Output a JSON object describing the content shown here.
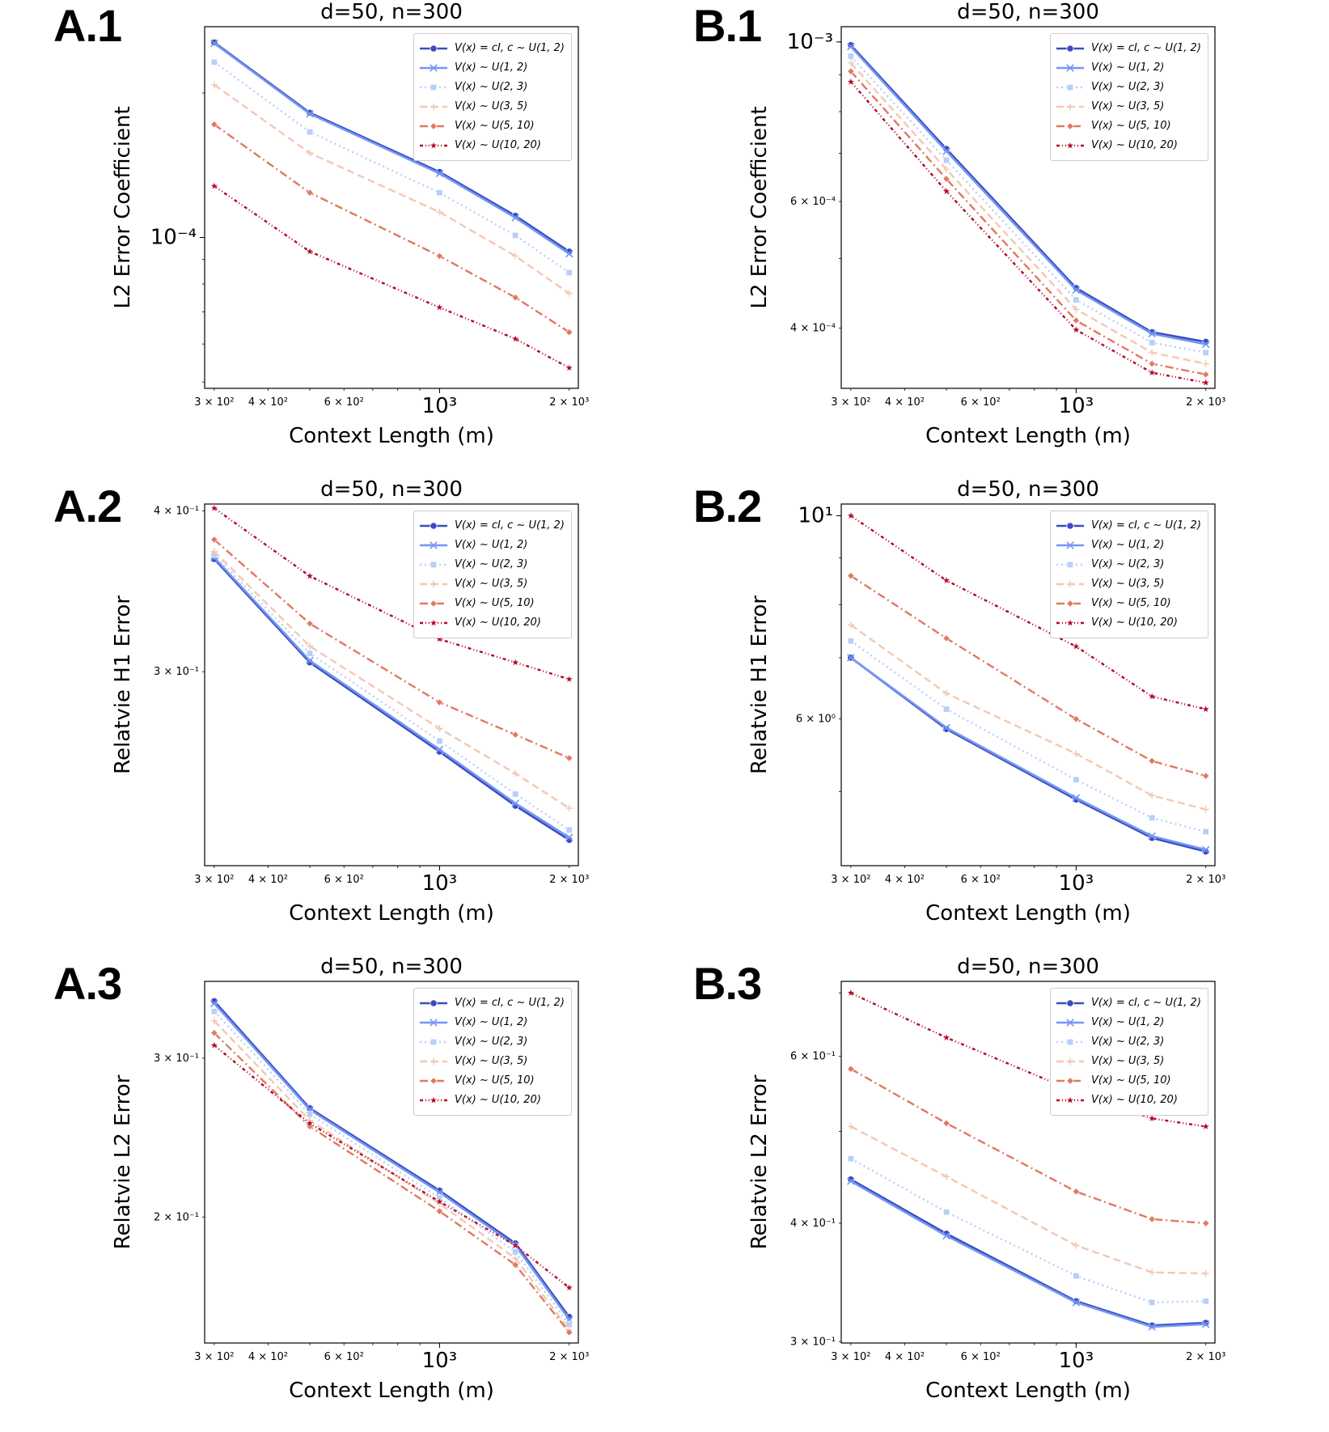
{
  "figure": {
    "panel_labels": [
      "A.1",
      "B.1",
      "A.2",
      "B.2",
      "A.3",
      "B.3"
    ]
  },
  "legend_entries": [
    "V(x) = cI,  c ~ U(1, 2)",
    "V(x) ~ U(1, 2)",
    "V(x) ~ U(2, 3)",
    "V(x) ~ U(3, 5)",
    "V(x) ~ U(5, 10)",
    "V(x) ~ U(10, 20)"
  ],
  "series_styles": [
    {
      "color": "#3b4cc0",
      "dash": "",
      "marker": "circle"
    },
    {
      "color": "#7396f5",
      "dash": "",
      "marker": "x"
    },
    {
      "color": "#b7cff9",
      "dash": "2,4",
      "marker": "square"
    },
    {
      "color": "#f2c8b3",
      "dash": "9,5",
      "marker": "plus"
    },
    {
      "color": "#e0795f",
      "dash": "10,4,2,4",
      "marker": "diamond"
    },
    {
      "color": "#b40426",
      "dash": "4,3,1,3,1,3",
      "marker": "star"
    }
  ],
  "x_tick_labels": [
    {
      "value": 300,
      "text": "3 × 10²",
      "major": false
    },
    {
      "value": 400,
      "text": "4 × 10²",
      "major": false
    },
    {
      "value": 600,
      "text": "6 × 10²",
      "major": false
    },
    {
      "value": 1000,
      "text": "10³",
      "major": true
    },
    {
      "value": 2000,
      "text": "2 × 10³",
      "major": false
    }
  ],
  "chart_data": [
    {
      "id": "A1",
      "type": "line",
      "panel_label": "A.1",
      "title": "d=50, n=300",
      "xlabel": "Context Length (m)",
      "ylabel": "L2 Error Coefficient",
      "xscale": "log",
      "yscale": "log",
      "xlim": [
        285,
        2100
      ],
      "ylim": [
        4.85e-05,
        0.000275
      ],
      "legend": "top-right",
      "y_ticks": [
        {
          "value": 0.0001,
          "text": "10⁻⁴",
          "major": true
        }
      ],
      "x": [
        300,
        500,
        1000,
        1500,
        2000
      ],
      "series": [
        {
          "name": "V(x) = cI,  c ~ U(1, 2)",
          "values": [
            0.000255,
            0.000182,
            0.000137,
            0.000111,
            9.35e-05
          ]
        },
        {
          "name": "V(x) ~ U(1, 2)",
          "values": [
            0.000254,
            0.000181,
            0.000136,
            0.00011,
            9.25e-05
          ]
        },
        {
          "name": "V(x) ~ U(2, 3)",
          "values": [
            0.000232,
            0.000166,
            0.000124,
            0.000101,
            8.45e-05
          ]
        },
        {
          "name": "V(x) ~ U(3, 5)",
          "values": [
            0.000208,
            0.00015,
            0.000113,
            9.15e-05,
            7.65e-05
          ]
        },
        {
          "name": "V(x) ~ U(5, 10)",
          "values": [
            0.000172,
            0.000124,
            9.15e-05,
            7.5e-05,
            6.35e-05
          ]
        },
        {
          "name": "V(x) ~ U(10, 20)",
          "values": [
            0.000128,
            9.35e-05,
            7.15e-05,
            6.15e-05,
            5.35e-05
          ]
        }
      ]
    },
    {
      "id": "B1",
      "type": "line",
      "panel_label": "B.1",
      "title": "d=50, n=300",
      "xlabel": "Context Length (m)",
      "ylabel": "L2 Error Coefficient",
      "xscale": "log",
      "yscale": "log",
      "xlim": [
        285,
        2100
      ],
      "ylim": [
        0.00033,
        0.00105
      ],
      "legend": "top-right",
      "y_ticks": [
        {
          "value": 0.001,
          "text": "10⁻³",
          "major": true
        },
        {
          "value": 0.0006,
          "text": "6 × 10⁻⁴",
          "major": false
        },
        {
          "value": 0.0004,
          "text": "4 × 10⁻⁴",
          "major": false
        }
      ],
      "x": [
        300,
        500,
        1000,
        1500,
        2000
      ],
      "series": [
        {
          "name": "V(x) = cI,  c ~ U(1, 2)",
          "values": [
            0.00099,
            0.00071,
            0.000455,
            0.000395,
            0.000383
          ]
        },
        {
          "name": "V(x) ~ U(1, 2)",
          "values": [
            0.000985,
            0.000705,
            0.000452,
            0.000393,
            0.00038
          ]
        },
        {
          "name": "V(x) ~ U(2, 3)",
          "values": [
            0.000955,
            0.000685,
            0.000438,
            0.000382,
            0.00037
          ]
        },
        {
          "name": "V(x) ~ U(3, 5)",
          "values": [
            0.000935,
            0.000665,
            0.000425,
            0.00037,
            0.000357
          ]
        },
        {
          "name": "V(x) ~ U(5, 10)",
          "values": [
            0.00091,
            0.000645,
            0.00041,
            0.000357,
            0.000345
          ]
        },
        {
          "name": "V(x) ~ U(10, 20)",
          "values": [
            0.00088,
            0.00062,
            0.000398,
            0.000347,
            0.000336
          ]
        }
      ]
    },
    {
      "id": "A2",
      "type": "line",
      "panel_label": "A.2",
      "title": "d=50, n=300",
      "xlabel": "Context Length (m)",
      "ylabel": "Relatvie H1 Error",
      "xscale": "log",
      "yscale": "log",
      "xlim": [
        285,
        2100
      ],
      "ylim": [
        0.212,
        0.405
      ],
      "legend": "top-right",
      "y_ticks": [
        {
          "value": 0.4,
          "text": "4 × 10⁻¹",
          "major": false
        },
        {
          "value": 0.3,
          "text": "3 × 10⁻¹",
          "major": false
        }
      ],
      "x": [
        300,
        500,
        1000,
        1500,
        2000
      ],
      "series": [
        {
          "name": "V(x) = cI,  c ~ U(1, 2)",
          "values": [
            0.367,
            0.305,
            0.26,
            0.236,
            0.222
          ]
        },
        {
          "name": "V(x) ~ U(1, 2)",
          "values": [
            0.368,
            0.306,
            0.261,
            0.237,
            0.223
          ]
        },
        {
          "name": "V(x) ~ U(2, 3)",
          "values": [
            0.37,
            0.31,
            0.265,
            0.241,
            0.226
          ]
        },
        {
          "name": "V(x) ~ U(3, 5)",
          "values": [
            0.372,
            0.314,
            0.271,
            0.25,
            0.235
          ]
        },
        {
          "name": "V(x) ~ U(5, 10)",
          "values": [
            0.38,
            0.327,
            0.284,
            0.268,
            0.257
          ]
        },
        {
          "name": "V(x) ~ U(10, 20)",
          "values": [
            0.402,
            0.356,
            0.318,
            0.305,
            0.296
          ]
        }
      ]
    },
    {
      "id": "B2",
      "type": "line",
      "panel_label": "B.2",
      "title": "d=50, n=300",
      "xlabel": "Context Length (m)",
      "ylabel": "Relatvie H1 Error",
      "xscale": "log",
      "yscale": "log",
      "xlim": [
        285,
        2100
      ],
      "ylim": [
        4.15,
        10.3
      ],
      "legend": "top-right",
      "y_ticks": [
        {
          "value": 10,
          "text": "10¹",
          "major": true
        },
        {
          "value": 6,
          "text": "6 × 10⁰",
          "major": false
        }
      ],
      "x": [
        300,
        500,
        1000,
        1500,
        2000
      ],
      "series": [
        {
          "name": "V(x) = cI,  c ~ U(1, 2)",
          "values": [
            7.0,
            5.85,
            4.9,
            4.45,
            4.3
          ]
        },
        {
          "name": "V(x) ~ U(1, 2)",
          "values": [
            7.0,
            5.87,
            4.92,
            4.47,
            4.32
          ]
        },
        {
          "name": "V(x) ~ U(2, 3)",
          "values": [
            7.3,
            6.15,
            5.15,
            4.68,
            4.52
          ]
        },
        {
          "name": "V(x) ~ U(3, 5)",
          "values": [
            7.6,
            6.4,
            5.5,
            4.95,
            4.78
          ]
        },
        {
          "name": "V(x) ~ U(5, 10)",
          "values": [
            8.6,
            7.35,
            6.0,
            5.4,
            5.2
          ]
        },
        {
          "name": "V(x) ~ U(10, 20)",
          "values": [
            10.0,
            8.5,
            7.2,
            6.35,
            6.15
          ]
        }
      ]
    },
    {
      "id": "A3",
      "type": "line",
      "panel_label": "A.3",
      "title": "d=50, n=300",
      "xlabel": "Context Length (m)",
      "ylabel": "Relatvie L2 Error",
      "xscale": "log",
      "yscale": "log",
      "xlim": [
        285,
        2100
      ],
      "ylim": [
        0.145,
        0.365
      ],
      "legend": "top-right",
      "y_ticks": [
        {
          "value": 0.3,
          "text": "3 × 10⁻¹",
          "major": false
        },
        {
          "value": 0.2,
          "text": "2 × 10⁻¹",
          "major": false
        }
      ],
      "x": [
        300,
        500,
        1000,
        1500,
        2000
      ],
      "series": [
        {
          "name": "V(x) = cI,  c ~ U(1, 2)",
          "values": [
            0.347,
            0.264,
            0.214,
            0.187,
            0.155
          ]
        },
        {
          "name": "V(x) ~ U(1, 2)",
          "values": [
            0.345,
            0.263,
            0.213,
            0.186,
            0.154
          ]
        },
        {
          "name": "V(x) ~ U(2, 3)",
          "values": [
            0.338,
            0.26,
            0.21,
            0.183,
            0.152
          ]
        },
        {
          "name": "V(x) ~ U(3, 5)",
          "values": [
            0.33,
            0.256,
            0.207,
            0.18,
            0.15
          ]
        },
        {
          "name": "V(x) ~ U(5, 10)",
          "values": [
            0.32,
            0.252,
            0.203,
            0.177,
            0.149
          ]
        },
        {
          "name": "V(x) ~ U(10, 20)",
          "values": [
            0.31,
            0.254,
            0.208,
            0.186,
            0.167
          ]
        }
      ]
    },
    {
      "id": "B3",
      "type": "line",
      "panel_label": "B.3",
      "title": "d=50, n=300",
      "xlabel": "Context Length (m)",
      "ylabel": "Relatvie L2 Error",
      "xscale": "log",
      "yscale": "log",
      "xlim": [
        285,
        2100
      ],
      "ylim": [
        0.299,
        0.72
      ],
      "legend": "top-right",
      "y_ticks": [
        {
          "value": 0.6,
          "text": "6 × 10⁻¹",
          "major": false
        },
        {
          "value": 0.4,
          "text": "4 × 10⁻¹",
          "major": false
        },
        {
          "value": 0.3,
          "text": "3 × 10⁻¹",
          "major": false
        }
      ],
      "x": [
        300,
        500,
        1000,
        1500,
        2000
      ],
      "series": [
        {
          "name": "V(x) = cI,  c ~ U(1, 2)",
          "values": [
            0.445,
            0.39,
            0.331,
            0.312,
            0.314
          ]
        },
        {
          "name": "V(x) ~ U(1, 2)",
          "values": [
            0.443,
            0.388,
            0.33,
            0.311,
            0.313
          ]
        },
        {
          "name": "V(x) ~ U(2, 3)",
          "values": [
            0.468,
            0.411,
            0.352,
            0.33,
            0.331
          ]
        },
        {
          "name": "V(x) ~ U(3, 5)",
          "values": [
            0.506,
            0.448,
            0.379,
            0.355,
            0.354
          ]
        },
        {
          "name": "V(x) ~ U(5, 10)",
          "values": [
            0.582,
            0.51,
            0.432,
            0.404,
            0.4
          ]
        },
        {
          "name": "V(x) ~ U(10, 20)",
          "values": [
            0.7,
            0.628,
            0.55,
            0.516,
            0.506
          ]
        }
      ]
    }
  ]
}
